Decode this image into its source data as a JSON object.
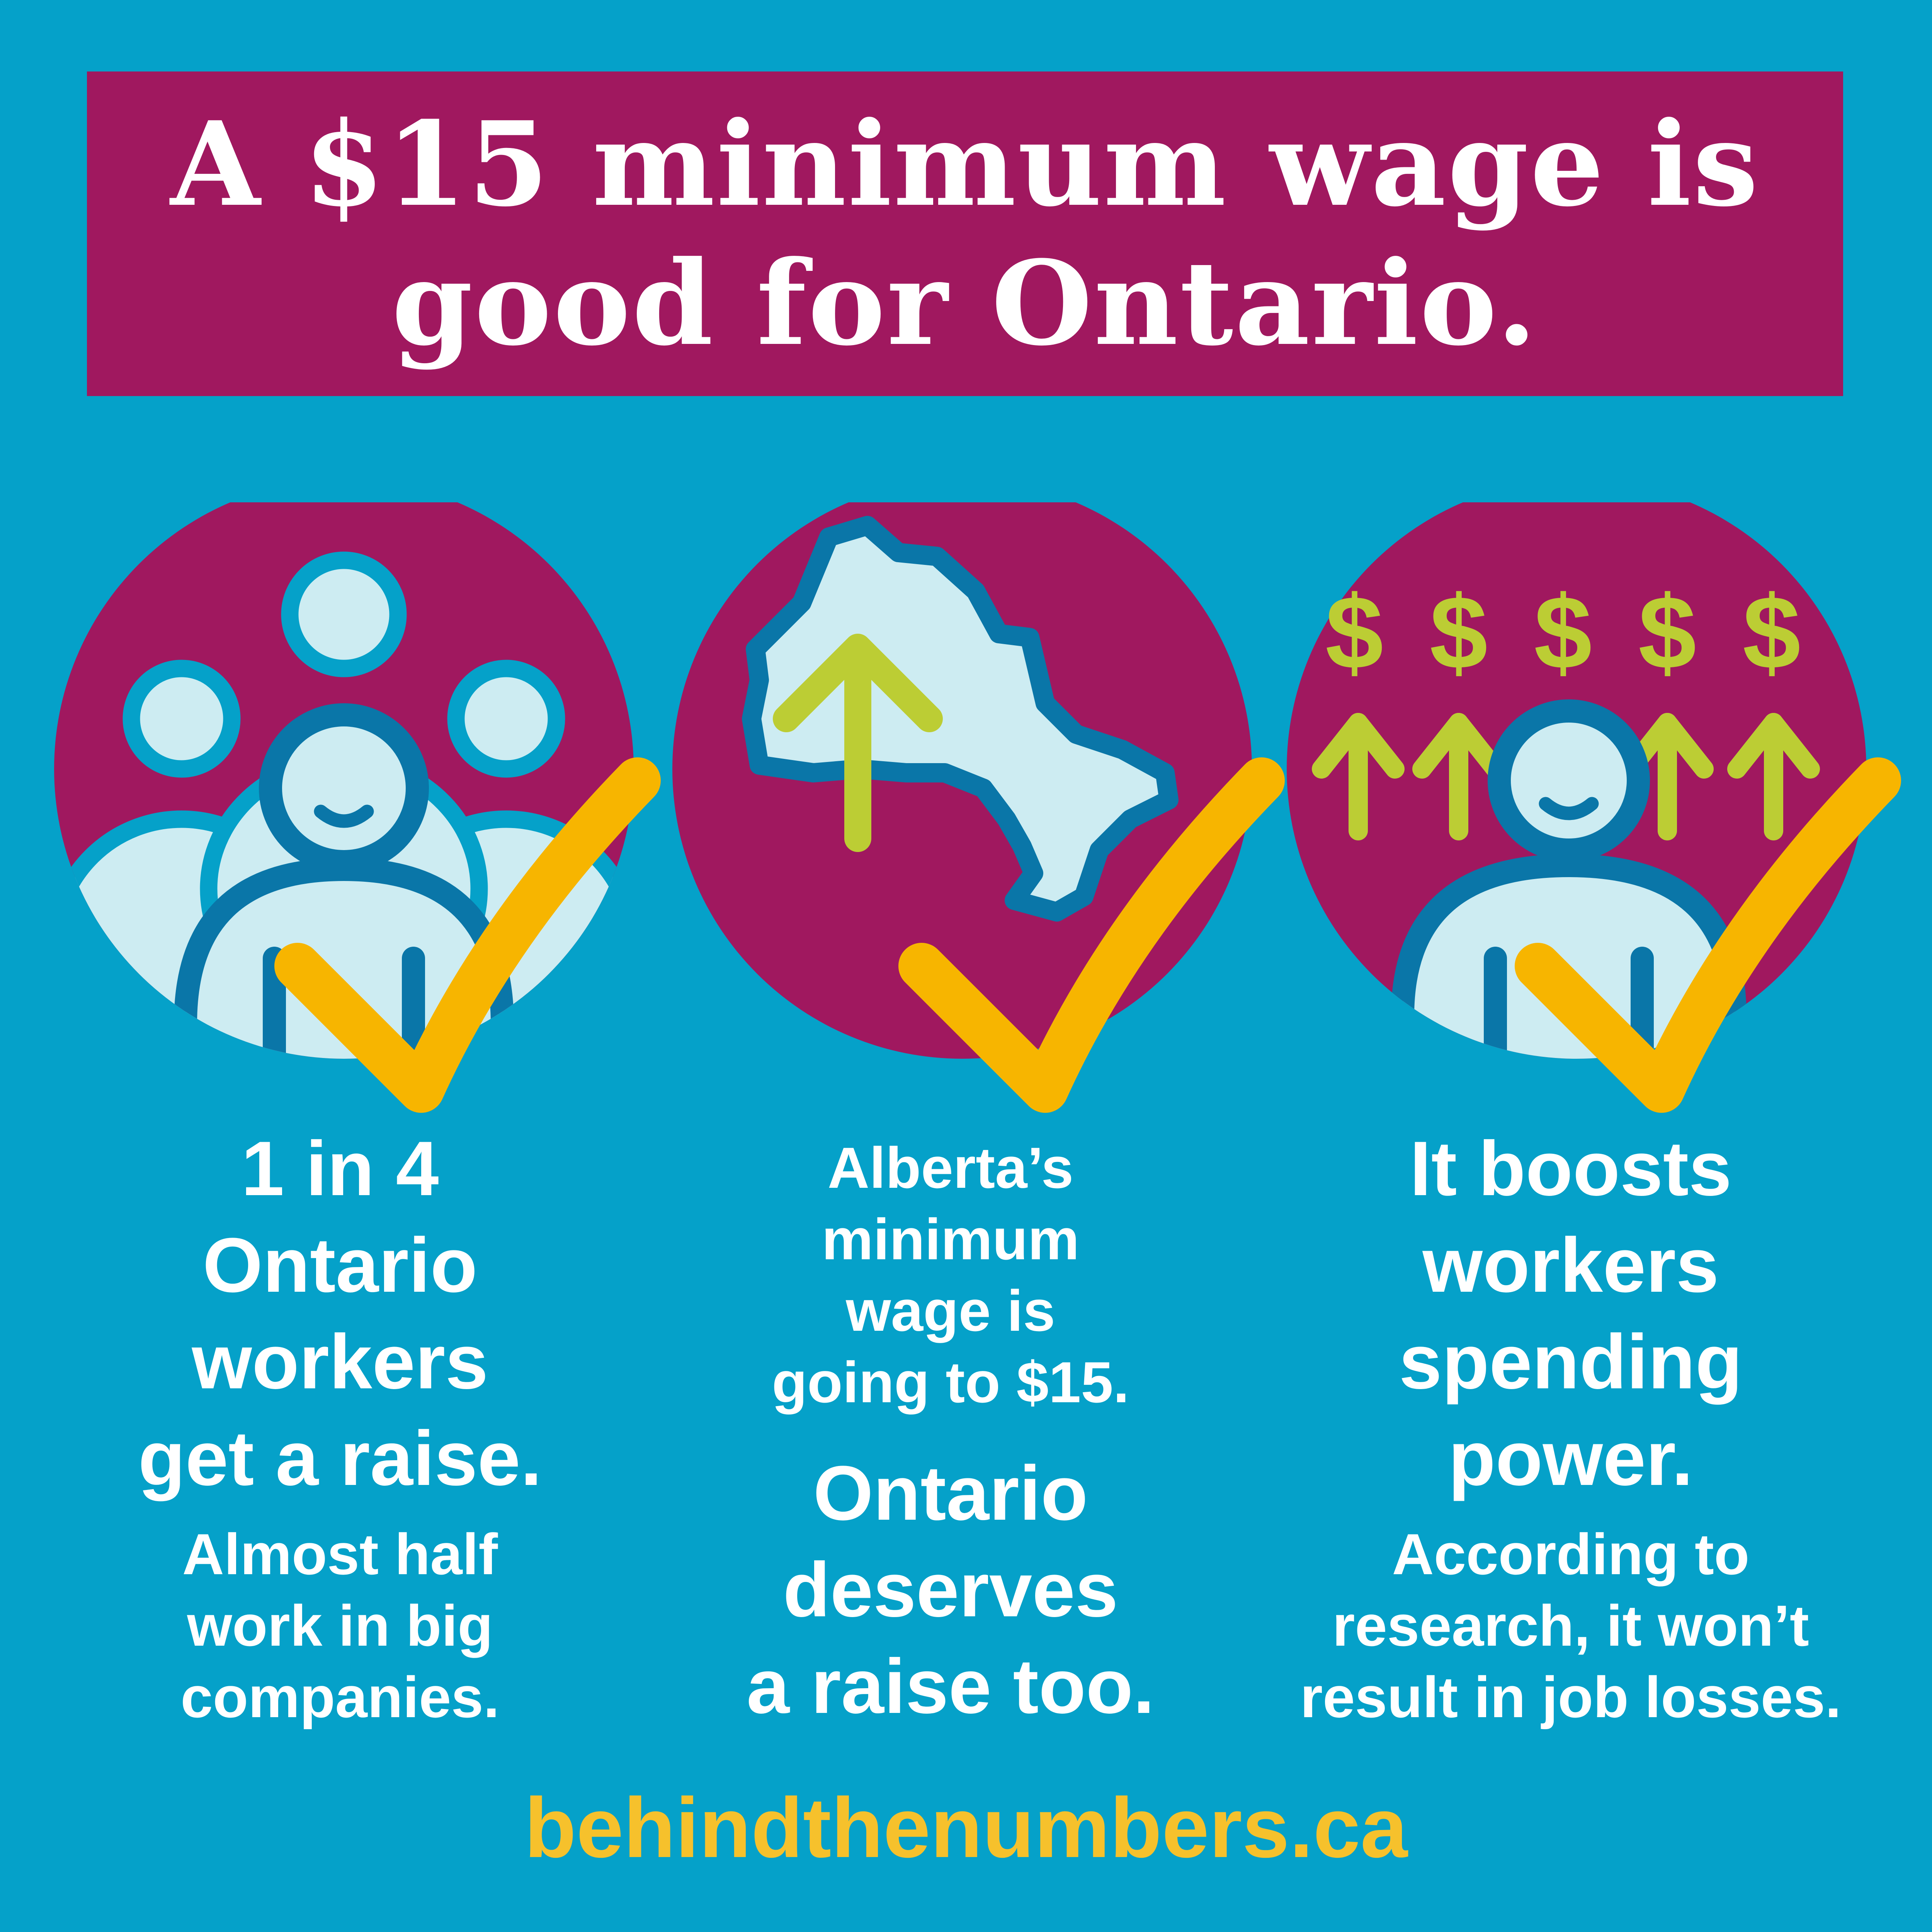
{
  "headline": {
    "line1": "A $15 minimum wage is",
    "line2": "good for Ontario."
  },
  "columns": [
    {
      "icon": "workers-group-icon",
      "title_lines": [
        "1 in 4",
        "Ontario",
        "workers",
        "get a raise."
      ],
      "subtitle_lines": [
        "Almost half",
        "work in big",
        "companies."
      ]
    },
    {
      "icon": "ontario-map-arrow-icon",
      "intro_lines": [
        "Alberta’s",
        "minimum",
        "wage is",
        "going to $15."
      ],
      "title_lines": [
        "Ontario",
        "deserves",
        "a raise too."
      ]
    },
    {
      "icon": "spending-power-icon",
      "title_lines": [
        "It boosts",
        "workers",
        "spending",
        "power."
      ],
      "subtitle_lines": [
        "According to",
        "research, it won’t",
        "result in job losses."
      ]
    }
  ],
  "dollar_signs": [
    "$",
    "$",
    "$",
    "$",
    "$"
  ],
  "footer": {
    "url": "behindthenumbers.ca"
  },
  "colors": {
    "background": "#05a1c9",
    "banner": "#a0185f",
    "check": "#f7b500",
    "accent_green": "#bccd34",
    "figure_dark": "#0a76a8",
    "figure_light": "#cdecf2",
    "footer_text": "#f6c12c"
  }
}
